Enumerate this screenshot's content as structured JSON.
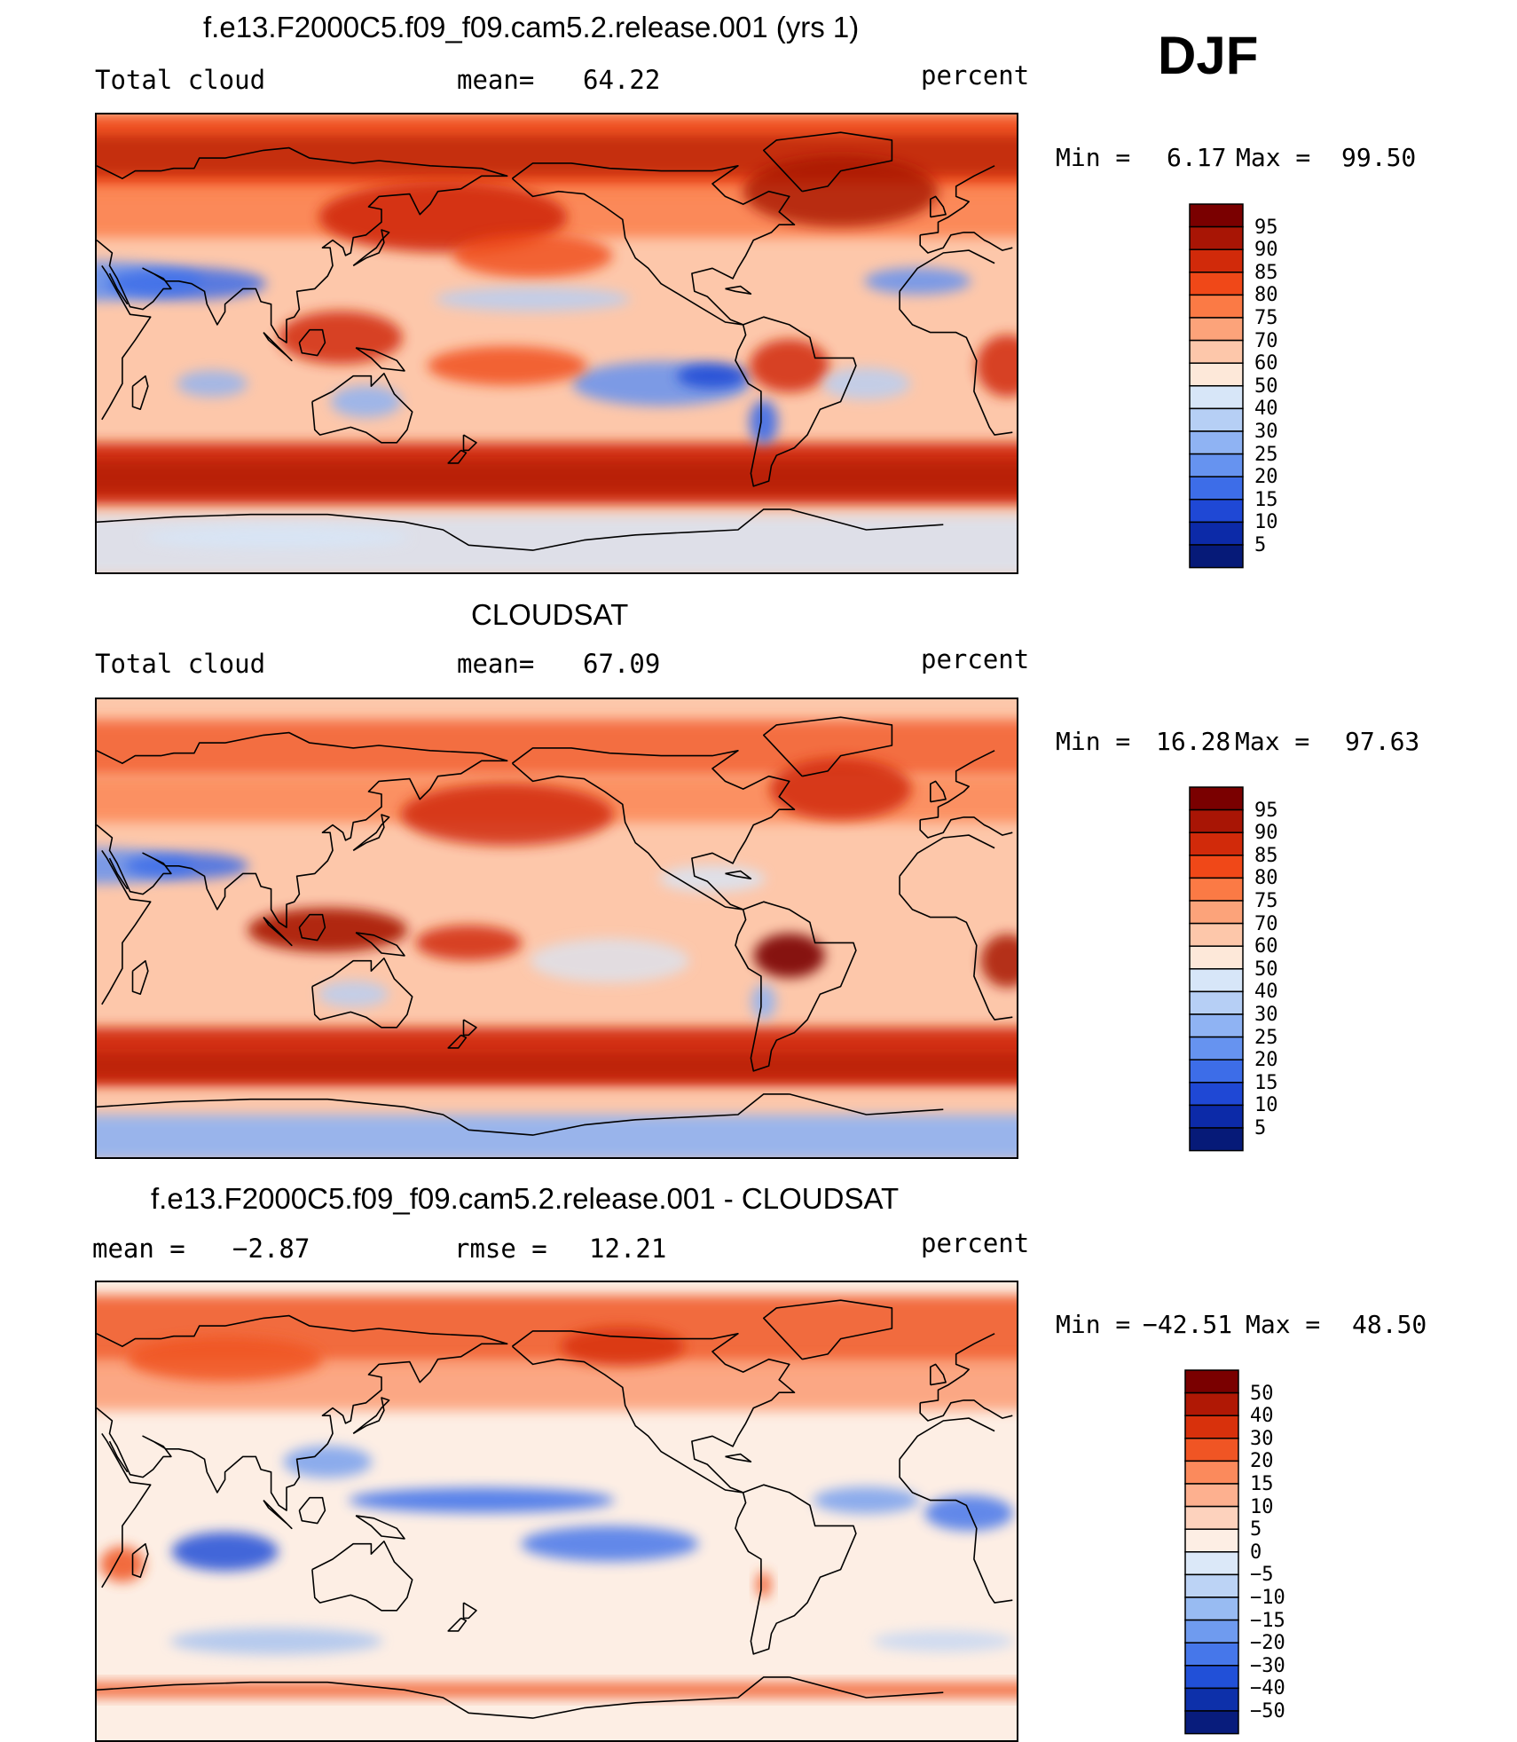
{
  "season": "DJF",
  "units": "percent",
  "panels": [
    {
      "title": "f.e13.F2000C5.f09_f09.cam5.2.release.001 (yrs 1)",
      "left_label": "Total cloud",
      "stat1_label": "mean=",
      "stat1_value": "64.22",
      "units": "percent",
      "min_label": "Min =",
      "min_value": "6.17",
      "max_label": "Max =",
      "max_value": "99.50",
      "kind": "model",
      "colorbar": [
        "95",
        "90",
        "85",
        "80",
        "75",
        "70",
        "60",
        "50",
        "40",
        "30",
        "25",
        "20",
        "15",
        "10",
        "5"
      ]
    },
    {
      "title": "CLOUDSAT",
      "left_label": "Total cloud",
      "stat1_label": "mean=",
      "stat1_value": "67.09",
      "units": "percent",
      "min_label": "Min =",
      "min_value": "16.28",
      "max_label": "Max =",
      "max_value": "97.63",
      "kind": "obs",
      "colorbar": [
        "95",
        "90",
        "85",
        "80",
        "75",
        "70",
        "60",
        "50",
        "40",
        "30",
        "25",
        "20",
        "15",
        "10",
        "5"
      ]
    },
    {
      "title": "f.e13.F2000C5.f09_f09.cam5.2.release.001 - CLOUDSAT",
      "left_label": "mean =",
      "left_value": "−2.87",
      "stat1_label": "rmse =",
      "stat1_value": "12.21",
      "units": "percent",
      "min_label": "Min =",
      "min_value": "−42.51",
      "max_label": "Max =",
      "max_value": "48.50",
      "kind": "diff",
      "colorbar": [
        "50",
        "40",
        "30",
        "20",
        "15",
        "10",
        "5",
        "0",
        "−5",
        "−10",
        "−15",
        "−20",
        "−30",
        "−40",
        "−50"
      ]
    }
  ],
  "colors": {
    "abs_scale": [
      "#7a0000",
      "#a81505",
      "#d12a0a",
      "#f04818",
      "#fb7a45",
      "#fca37a",
      "#fdc7aa",
      "#fde8d9",
      "#d7e6f8",
      "#b6cff5",
      "#8fb3f3",
      "#6693f0",
      "#3d6de8",
      "#1f48d5",
      "#0c2aa8",
      "#061a78"
    ],
    "diff_scale": [
      "#7a0000",
      "#b01805",
      "#d8310c",
      "#f05524",
      "#fb8a5c",
      "#fdb08f",
      "#fdd2bd",
      "#fdeee4",
      "#dbe8f8",
      "#bcd3f5",
      "#98bbf2",
      "#6f9bef",
      "#4677ea",
      "#2150d8",
      "#0d30aa",
      "#081c7c"
    ]
  }
}
